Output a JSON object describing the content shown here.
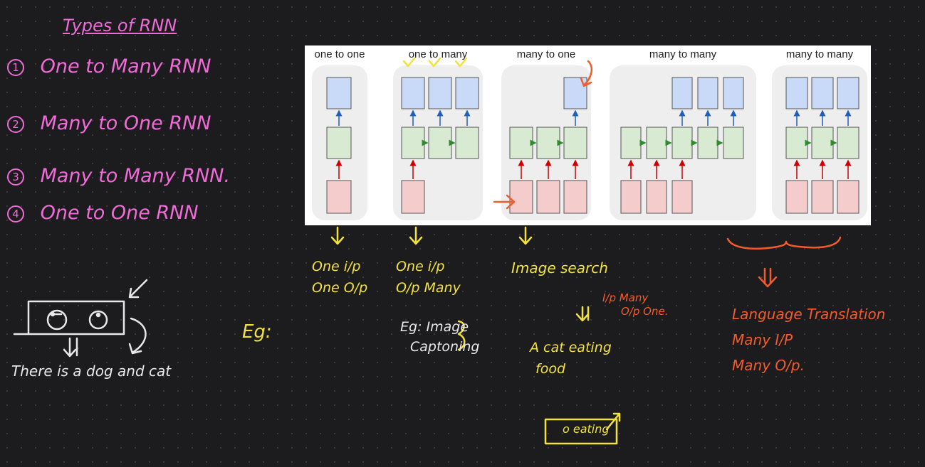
{
  "notes": {
    "heading": "Types of RNN",
    "list": [
      {
        "num": "1",
        "text": "One to Many RNN"
      },
      {
        "num": "2",
        "text": "Many to One RNN"
      },
      {
        "num": "3",
        "text": "Many to Many RNN."
      },
      {
        "num": "4",
        "text": "One to One RNN"
      }
    ],
    "sketch_caption": "There is a dog and cat",
    "eg_label": "Eg:"
  },
  "diagram": {
    "panels": [
      {
        "title": "one to one",
        "inputs": 1,
        "hidden": 1,
        "outputs": 1
      },
      {
        "title": "one to many",
        "inputs": 1,
        "hidden": 3,
        "outputs": 3
      },
      {
        "title": "many to one",
        "inputs": 3,
        "hidden": 3,
        "outputs": 1
      },
      {
        "title": "many to many",
        "inputs": 3,
        "hidden": 5,
        "outputs": 3
      },
      {
        "title": "many to many",
        "inputs": 3,
        "hidden": 3,
        "outputs": 3
      }
    ]
  },
  "annotations": {
    "one_to_one": [
      "One i/p",
      "One O/p"
    ],
    "one_to_many": [
      "One i/p",
      "O/p Many"
    ],
    "one_to_many_eg": [
      "Eg: Image",
      "Captoning"
    ],
    "many_to_one_title": "Image search",
    "many_to_one_io": [
      "I/p Many",
      "O/p One."
    ],
    "many_to_one_example": [
      "A cat eating",
      "food"
    ],
    "box_text": "o eating",
    "many_to_many": [
      "Language Translation",
      "Many I/P",
      "Many O/p."
    ]
  },
  "colors": {
    "pink_ink": "#f06ad8",
    "yellow_ink": "#f2e23a",
    "orange_ink": "#f25c2a",
    "white_ink": "#e8e8e8",
    "input_box": "#f4cccc",
    "hidden_box": "#d9ead3",
    "output_box": "#c9daf8"
  }
}
